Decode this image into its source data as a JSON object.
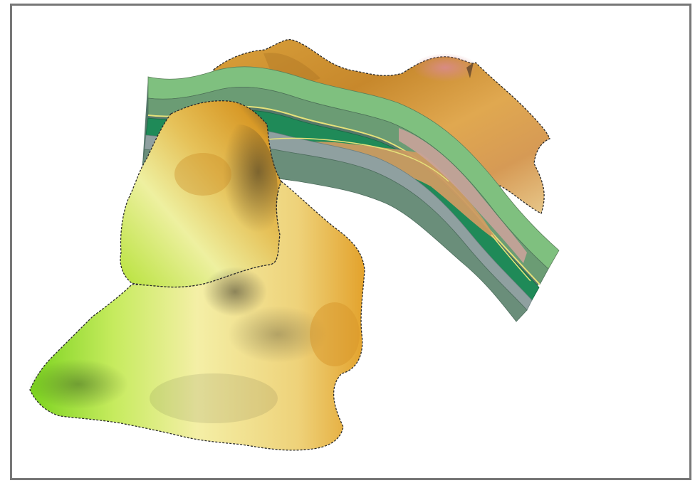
{
  "scene": {
    "background": "#ffffff",
    "frame_color": "#777777",
    "outline_style": "dashed",
    "outline_color": "#2b2b2b"
  },
  "surfaces": [
    {
      "name": "far-ridge-surface",
      "colors": [
        "#e0a43a",
        "#c98a2e",
        "#d9b36a",
        "#d9858a"
      ]
    },
    {
      "name": "middle-hill-surface",
      "colors": [
        "#b9e33c",
        "#f2ec9c",
        "#e2a52b",
        "#5a4a32"
      ]
    },
    {
      "name": "front-hill-surface",
      "colors": [
        "#7ed321",
        "#f3ee9f",
        "#e2a12a",
        "#5b5034"
      ]
    }
  ],
  "geologic_section": {
    "layer_colors": [
      "#7fc07f",
      "#6b9c74",
      "#8fa0a0",
      "#1f8a58",
      "#cc9b62",
      "#c9a39a",
      "#6a8e7a",
      "#55786a"
    ],
    "contact_color": "#e6e27a"
  }
}
